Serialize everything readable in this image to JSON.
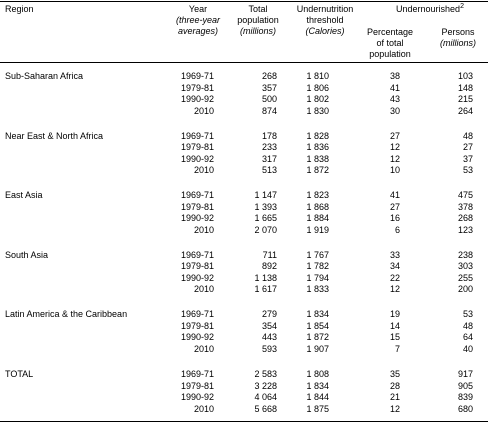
{
  "header": {
    "region": "Region",
    "year": [
      "Year",
      "(three-year",
      "averages)"
    ],
    "population": [
      "Total",
      "population",
      "(millions)"
    ],
    "threshold": [
      "Undernutrition",
      "threshold",
      "(Calories)"
    ],
    "undernourished": "Undernourished",
    "footnote_mark": "2",
    "percentage": [
      "Percentage",
      "of total",
      "population"
    ],
    "persons": [
      "Persons",
      "(millions)"
    ]
  },
  "groups": [
    {
      "region": "Sub-Saharan Africa",
      "rows": [
        [
          "1969-71",
          "268",
          "1 810",
          "38",
          "103"
        ],
        [
          "1979-81",
          "357",
          "1 806",
          "41",
          "148"
        ],
        [
          "1990-92",
          "500",
          "1 802",
          "43",
          "215"
        ],
        [
          "2010",
          "874",
          "1 830",
          "30",
          "264"
        ]
      ]
    },
    {
      "region": "Near East & North Africa",
      "rows": [
        [
          "1969-71",
          "178",
          "1 828",
          "27",
          "48"
        ],
        [
          "1979-81",
          "233",
          "1 836",
          "12",
          "27"
        ],
        [
          "1990-92",
          "317",
          "1 838",
          "12",
          "37"
        ],
        [
          "2010",
          "513",
          "1 872",
          "10",
          "53"
        ]
      ]
    },
    {
      "region": "East Asia",
      "rows": [
        [
          "1969-71",
          "1 147",
          "1 823",
          "41",
          "475"
        ],
        [
          "1979-81",
          "1 393",
          "1 868",
          "27",
          "378"
        ],
        [
          "1990-92",
          "1 665",
          "1 884",
          "16",
          "268"
        ],
        [
          "2010",
          "2 070",
          "1 919",
          "6",
          "123"
        ]
      ]
    },
    {
      "region": "South Asia",
      "rows": [
        [
          "1969-71",
          "711",
          "1 767",
          "33",
          "238"
        ],
        [
          "1979-81",
          "892",
          "1 782",
          "34",
          "303"
        ],
        [
          "1990-92",
          "1 138",
          "1 794",
          "22",
          "255"
        ],
        [
          "2010",
          "1 617",
          "1 833",
          "12",
          "200"
        ]
      ]
    },
    {
      "region": "Latin America & the Caribbean",
      "rows": [
        [
          "1969-71",
          "279",
          "1 834",
          "19",
          "53"
        ],
        [
          "1979-81",
          "354",
          "1 854",
          "14",
          "48"
        ],
        [
          "1990-92",
          "443",
          "1 872",
          "15",
          "64"
        ],
        [
          "2010",
          "593",
          "1 907",
          "7",
          "40"
        ]
      ]
    },
    {
      "region": "TOTAL",
      "rows": [
        [
          "1969-71",
          "2 583",
          "1 808",
          "35",
          "917"
        ],
        [
          "1979-81",
          "3 228",
          "1 834",
          "28",
          "905"
        ],
        [
          "1990-92",
          "4 064",
          "1 844",
          "21",
          "839"
        ],
        [
          "2010",
          "5 668",
          "1 875",
          "12",
          "680"
        ]
      ]
    }
  ]
}
